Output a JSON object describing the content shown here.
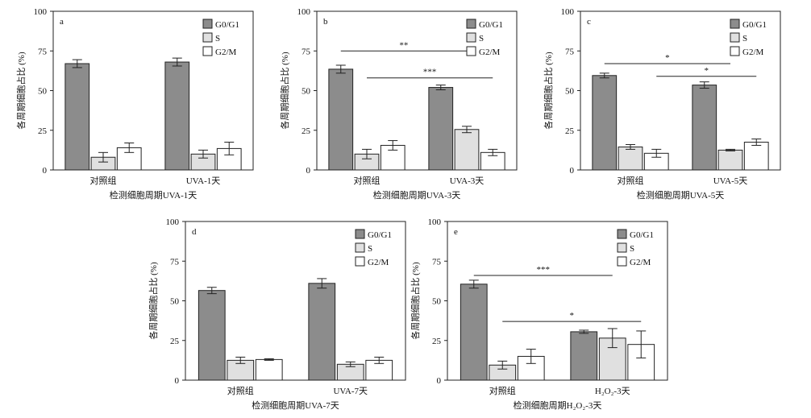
{
  "figure": {
    "colors": {
      "g0g1": "#8c8c8c",
      "s": "#e0e0e0",
      "g2m": "#ffffff",
      "stroke": "#222222"
    }
  },
  "chart_data": [
    {
      "type": "bar",
      "panel_label": "a",
      "ylabel": "各周期细胞占比 (%)",
      "xlabel": "检测细胞周期UVA-1天",
      "ylim": [
        0,
        100
      ],
      "yticks": [
        "0",
        "25",
        "50",
        "75",
        "100"
      ],
      "categories": [
        "对照组",
        "UVA-1天"
      ],
      "legend": {
        "entries": [
          "G0/G1",
          "S",
          "G2/M"
        ],
        "position": "top-right"
      },
      "series": [
        {
          "name": "G0/G1",
          "values": [
            67,
            68
          ],
          "errors": [
            2.5,
            2.5
          ]
        },
        {
          "name": "S",
          "values": [
            8,
            10
          ],
          "errors": [
            3,
            2.5
          ]
        },
        {
          "name": "G2/M",
          "values": [
            14,
            13.5
          ],
          "errors": [
            3,
            4
          ]
        }
      ],
      "significance": []
    },
    {
      "type": "bar",
      "panel_label": "b",
      "ylabel": "各周期细胞占比 (%)",
      "xlabel": "检测细胞周期UVA-3天",
      "ylim": [
        0,
        100
      ],
      "yticks": [
        "0",
        "25",
        "50",
        "75",
        "100"
      ],
      "categories": [
        "对照组",
        "UVA-3天"
      ],
      "legend": {
        "entries": [
          "G0/G1",
          "S",
          "G2/M"
        ],
        "position": "top-right"
      },
      "series": [
        {
          "name": "G0/G1",
          "values": [
            63.5,
            52
          ],
          "errors": [
            2.5,
            1.5
          ]
        },
        {
          "name": "S",
          "values": [
            10,
            25.5
          ],
          "errors": [
            3,
            2
          ]
        },
        {
          "name": "G2/M",
          "values": [
            15.5,
            11
          ],
          "errors": [
            3,
            2
          ]
        }
      ],
      "significance": [
        {
          "label": "**",
          "y": 75,
          "from_category": 0,
          "from_series": 0,
          "to_category": 1,
          "to_series": 1
        },
        {
          "label": "***",
          "y": 58,
          "from_category": 0,
          "from_series": 1,
          "to_category": 1,
          "to_series": 2
        }
      ]
    },
    {
      "type": "bar",
      "panel_label": "c",
      "ylabel": "各周期细胞占比 (%)",
      "xlabel": "检测细胞周期UVA-5天",
      "ylim": [
        0,
        100
      ],
      "yticks": [
        "0",
        "25",
        "50",
        "75",
        "100"
      ],
      "categories": [
        "对照组",
        "UVA-5天"
      ],
      "legend": {
        "entries": [
          "G0/G1",
          "S",
          "G2/M"
        ],
        "position": "top-right"
      },
      "series": [
        {
          "name": "G0/G1",
          "values": [
            59.5,
            53.5
          ],
          "errors": [
            1.5,
            2
          ]
        },
        {
          "name": "S",
          "values": [
            14.5,
            12.5
          ],
          "errors": [
            1.5,
            0.5
          ]
        },
        {
          "name": "G2/M",
          "values": [
            10.5,
            17.5
          ],
          "errors": [
            2.5,
            2
          ]
        }
      ],
      "significance": [
        {
          "label": "*",
          "y": 67,
          "from_category": 0,
          "from_series": 0,
          "to_category": 1,
          "to_series": 1
        },
        {
          "label": "*",
          "y": 59,
          "from_category": 0,
          "from_series": 2,
          "to_category": 1,
          "to_series": 2
        }
      ]
    },
    {
      "type": "bar",
      "panel_label": "d",
      "ylabel": "各周期细胞占比 (%)",
      "xlabel": "检测细胞周期UVA-7天",
      "ylim": [
        0,
        100
      ],
      "yticks": [
        "0",
        "25",
        "50",
        "75",
        "100"
      ],
      "categories": [
        "对照组",
        "UVA-7天"
      ],
      "legend": {
        "entries": [
          "G0/G1",
          "S",
          "G2/M"
        ],
        "position": "top-right"
      },
      "series": [
        {
          "name": "G0/G1",
          "values": [
            56.5,
            61
          ],
          "errors": [
            2,
            3
          ]
        },
        {
          "name": "S",
          "values": [
            12.5,
            10
          ],
          "errors": [
            2,
            1.5
          ]
        },
        {
          "name": "G2/M",
          "values": [
            13,
            12.5
          ],
          "errors": [
            0.5,
            2
          ]
        }
      ],
      "significance": []
    },
    {
      "type": "bar",
      "panel_label": "e",
      "ylabel": "各周期细胞占比 (%)",
      "xlabel": "检测细胞周期H₂O₂-3天",
      "ylim": [
        0,
        100
      ],
      "yticks": [
        "0",
        "25",
        "50",
        "75",
        "100"
      ],
      "categories": [
        "对照组",
        "H₂O₂-3天"
      ],
      "legend": {
        "entries": [
          "G0/G1",
          "S",
          "G2/M"
        ],
        "position": "top-right"
      },
      "series": [
        {
          "name": "G0/G1",
          "values": [
            60.5,
            30.5
          ],
          "errors": [
            2.5,
            1
          ]
        },
        {
          "name": "S",
          "values": [
            9.5,
            26.5
          ],
          "errors": [
            2.5,
            6
          ]
        },
        {
          "name": "G2/M",
          "values": [
            15,
            22.5
          ],
          "errors": [
            4.5,
            8.5
          ]
        }
      ],
      "significance": [
        {
          "label": "***",
          "y": 66,
          "from_category": 0,
          "from_series": 0,
          "to_category": 1,
          "to_series": 1
        },
        {
          "label": "*",
          "y": 37,
          "from_category": 0,
          "from_series": 1,
          "to_category": 1,
          "to_series": 2
        }
      ]
    }
  ]
}
